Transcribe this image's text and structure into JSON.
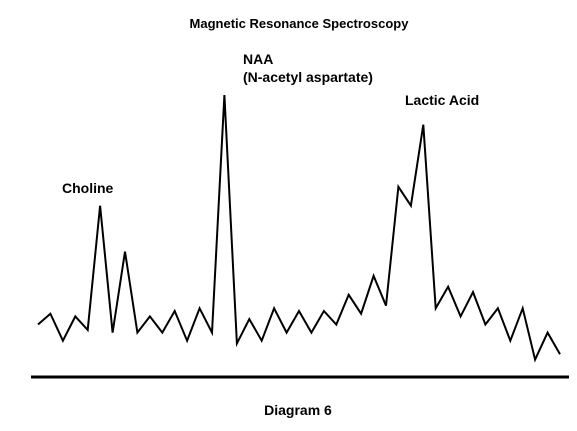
{
  "chart_data": {
    "type": "line",
    "title": "Magnetic Resonance Spectroscopy",
    "caption": "Diagram 6",
    "xlabel": "",
    "ylabel": "",
    "grid": false,
    "legend": "none",
    "ylim": [
      0,
      100
    ],
    "series": [
      {
        "values": [
          [
            0,
            15
          ],
          [
            1,
            19
          ],
          [
            2,
            9
          ],
          [
            3,
            18
          ],
          [
            4,
            13
          ],
          [
            5,
            59
          ],
          [
            6,
            12
          ],
          [
            7,
            42
          ],
          [
            8,
            12
          ],
          [
            9,
            18
          ],
          [
            10,
            12
          ],
          [
            11,
            20
          ],
          [
            12,
            9
          ],
          [
            13,
            21
          ],
          [
            14,
            12
          ],
          [
            15,
            100
          ],
          [
            16,
            8
          ],
          [
            17,
            17
          ],
          [
            18,
            9
          ],
          [
            19,
            21
          ],
          [
            20,
            12
          ],
          [
            21,
            20
          ],
          [
            22,
            12
          ],
          [
            23,
            20
          ],
          [
            24,
            15
          ],
          [
            25,
            26
          ],
          [
            26,
            19
          ],
          [
            27,
            33
          ],
          [
            28,
            22
          ],
          [
            29,
            66
          ],
          [
            30,
            59
          ],
          [
            31,
            89
          ],
          [
            32,
            21
          ],
          [
            33,
            29
          ],
          [
            34,
            18
          ],
          [
            35,
            27
          ],
          [
            36,
            15
          ],
          [
            37,
            21
          ],
          [
            38,
            9
          ],
          [
            39,
            21
          ],
          [
            40,
            2
          ],
          [
            41,
            12
          ],
          [
            42,
            4
          ]
        ]
      }
    ],
    "annotations": [
      {
        "id": "choline",
        "lines": [
          "Choline"
        ],
        "x": 5
      },
      {
        "id": "naa",
        "lines": [
          "NAA",
          "(N-acetyl aspartate)"
        ],
        "x": 15
      },
      {
        "id": "lactic",
        "lines": [
          "Lactic Acid"
        ],
        "x": 31
      }
    ]
  }
}
